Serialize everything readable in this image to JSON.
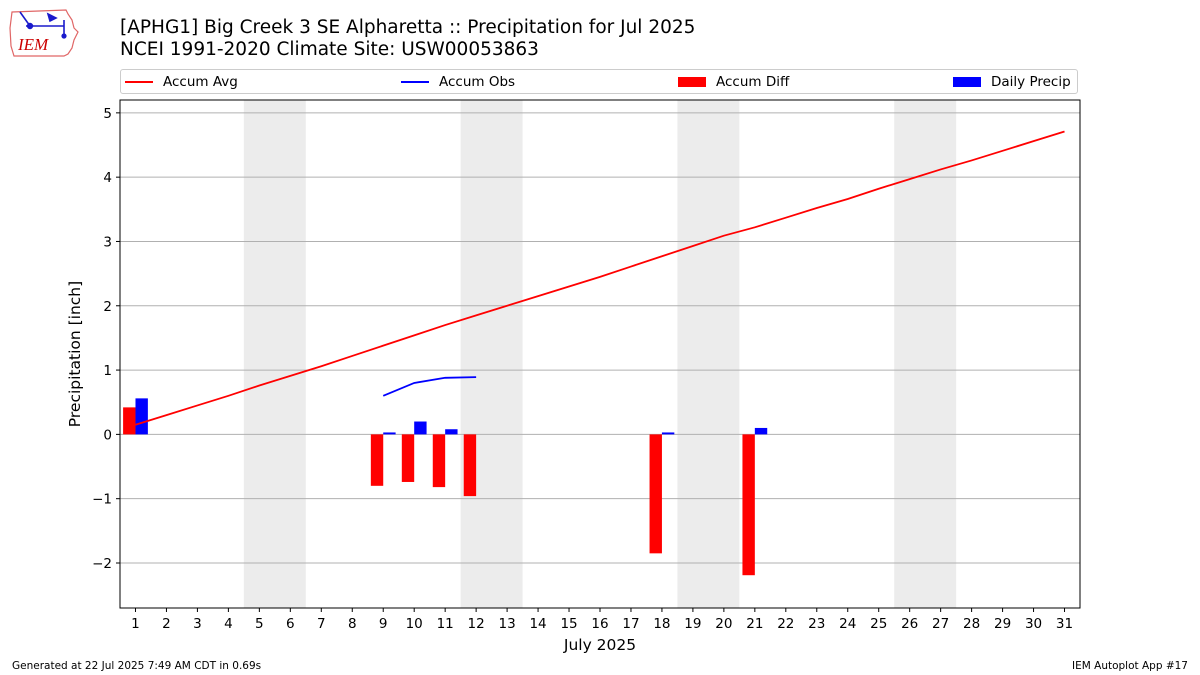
{
  "logo": {
    "text": "IEM"
  },
  "header": {
    "title_line1": "[APHG1] Big Creek 3 SE Alpharetta :: Precipitation for Jul 2025",
    "title_line2": "NCEI 1991-2020 Climate Site: USW00053863"
  },
  "colors": {
    "avg": "#ff0000",
    "obs": "#0000ff",
    "diff": "#ff0000",
    "daily": "#0000ff",
    "weekend": "#ececec",
    "grid": "#b0b0b0"
  },
  "chart_data": {
    "type": "bar",
    "title": "[APHG1] Big Creek 3 SE Alpharetta :: Precipitation for Jul 2025",
    "xlabel": "July 2025",
    "ylabel": "Precipitation [inch]",
    "ylim": [
      -2.7,
      5.2
    ],
    "yticks": [
      -2,
      -1,
      0,
      1,
      2,
      3,
      4,
      5
    ],
    "ytick_labels": [
      "−2",
      "−1",
      "0",
      "1",
      "2",
      "3",
      "4",
      "5"
    ],
    "days": [
      1,
      2,
      3,
      4,
      5,
      6,
      7,
      8,
      9,
      10,
      11,
      12,
      13,
      14,
      15,
      16,
      17,
      18,
      19,
      20,
      21,
      22,
      23,
      24,
      25,
      26,
      27,
      28,
      29,
      30,
      31
    ],
    "weekend_spans": [
      [
        4.5,
        6.5
      ],
      [
        11.5,
        13.5
      ],
      [
        18.5,
        20.5
      ],
      [
        25.5,
        27.5
      ]
    ],
    "legend_position": "top",
    "series": [
      {
        "name": "Accum Avg",
        "kind": "line",
        "x": [
          1,
          2,
          3,
          4,
          5,
          6,
          7,
          8,
          9,
          10,
          11,
          12,
          13,
          14,
          15,
          16,
          17,
          18,
          19,
          20,
          21,
          22,
          23,
          24,
          25,
          26,
          27,
          28,
          29,
          30,
          31
        ],
        "values": [
          0.15,
          0.3,
          0.45,
          0.6,
          0.76,
          0.91,
          1.06,
          1.22,
          1.38,
          1.54,
          1.7,
          1.85,
          2.0,
          2.15,
          2.3,
          2.45,
          2.61,
          2.77,
          2.93,
          3.09,
          3.22,
          3.37,
          3.52,
          3.66,
          3.82,
          3.97,
          4.12,
          4.26,
          4.41,
          4.56,
          4.71
        ]
      },
      {
        "name": "Accum Obs",
        "kind": "line",
        "x": [
          9,
          10,
          11,
          12
        ],
        "values": [
          0.6,
          0.8,
          0.88,
          0.89
        ]
      },
      {
        "name": "Accum Diff",
        "kind": "bar",
        "x": [
          1,
          9,
          10,
          11,
          12,
          18,
          21
        ],
        "values": [
          0.42,
          -0.8,
          -0.74,
          -0.82,
          -0.96,
          -1.85,
          -2.19
        ]
      },
      {
        "name": "Daily Precip",
        "kind": "bar",
        "x": [
          1,
          9,
          10,
          11,
          18,
          21
        ],
        "values": [
          0.56,
          0.03,
          0.2,
          0.08,
          0.03,
          0.1
        ]
      }
    ]
  },
  "footer": {
    "left": "Generated at 22 Jul 2025 7:49 AM CDT in 0.69s",
    "right": "IEM Autoplot App #17"
  }
}
